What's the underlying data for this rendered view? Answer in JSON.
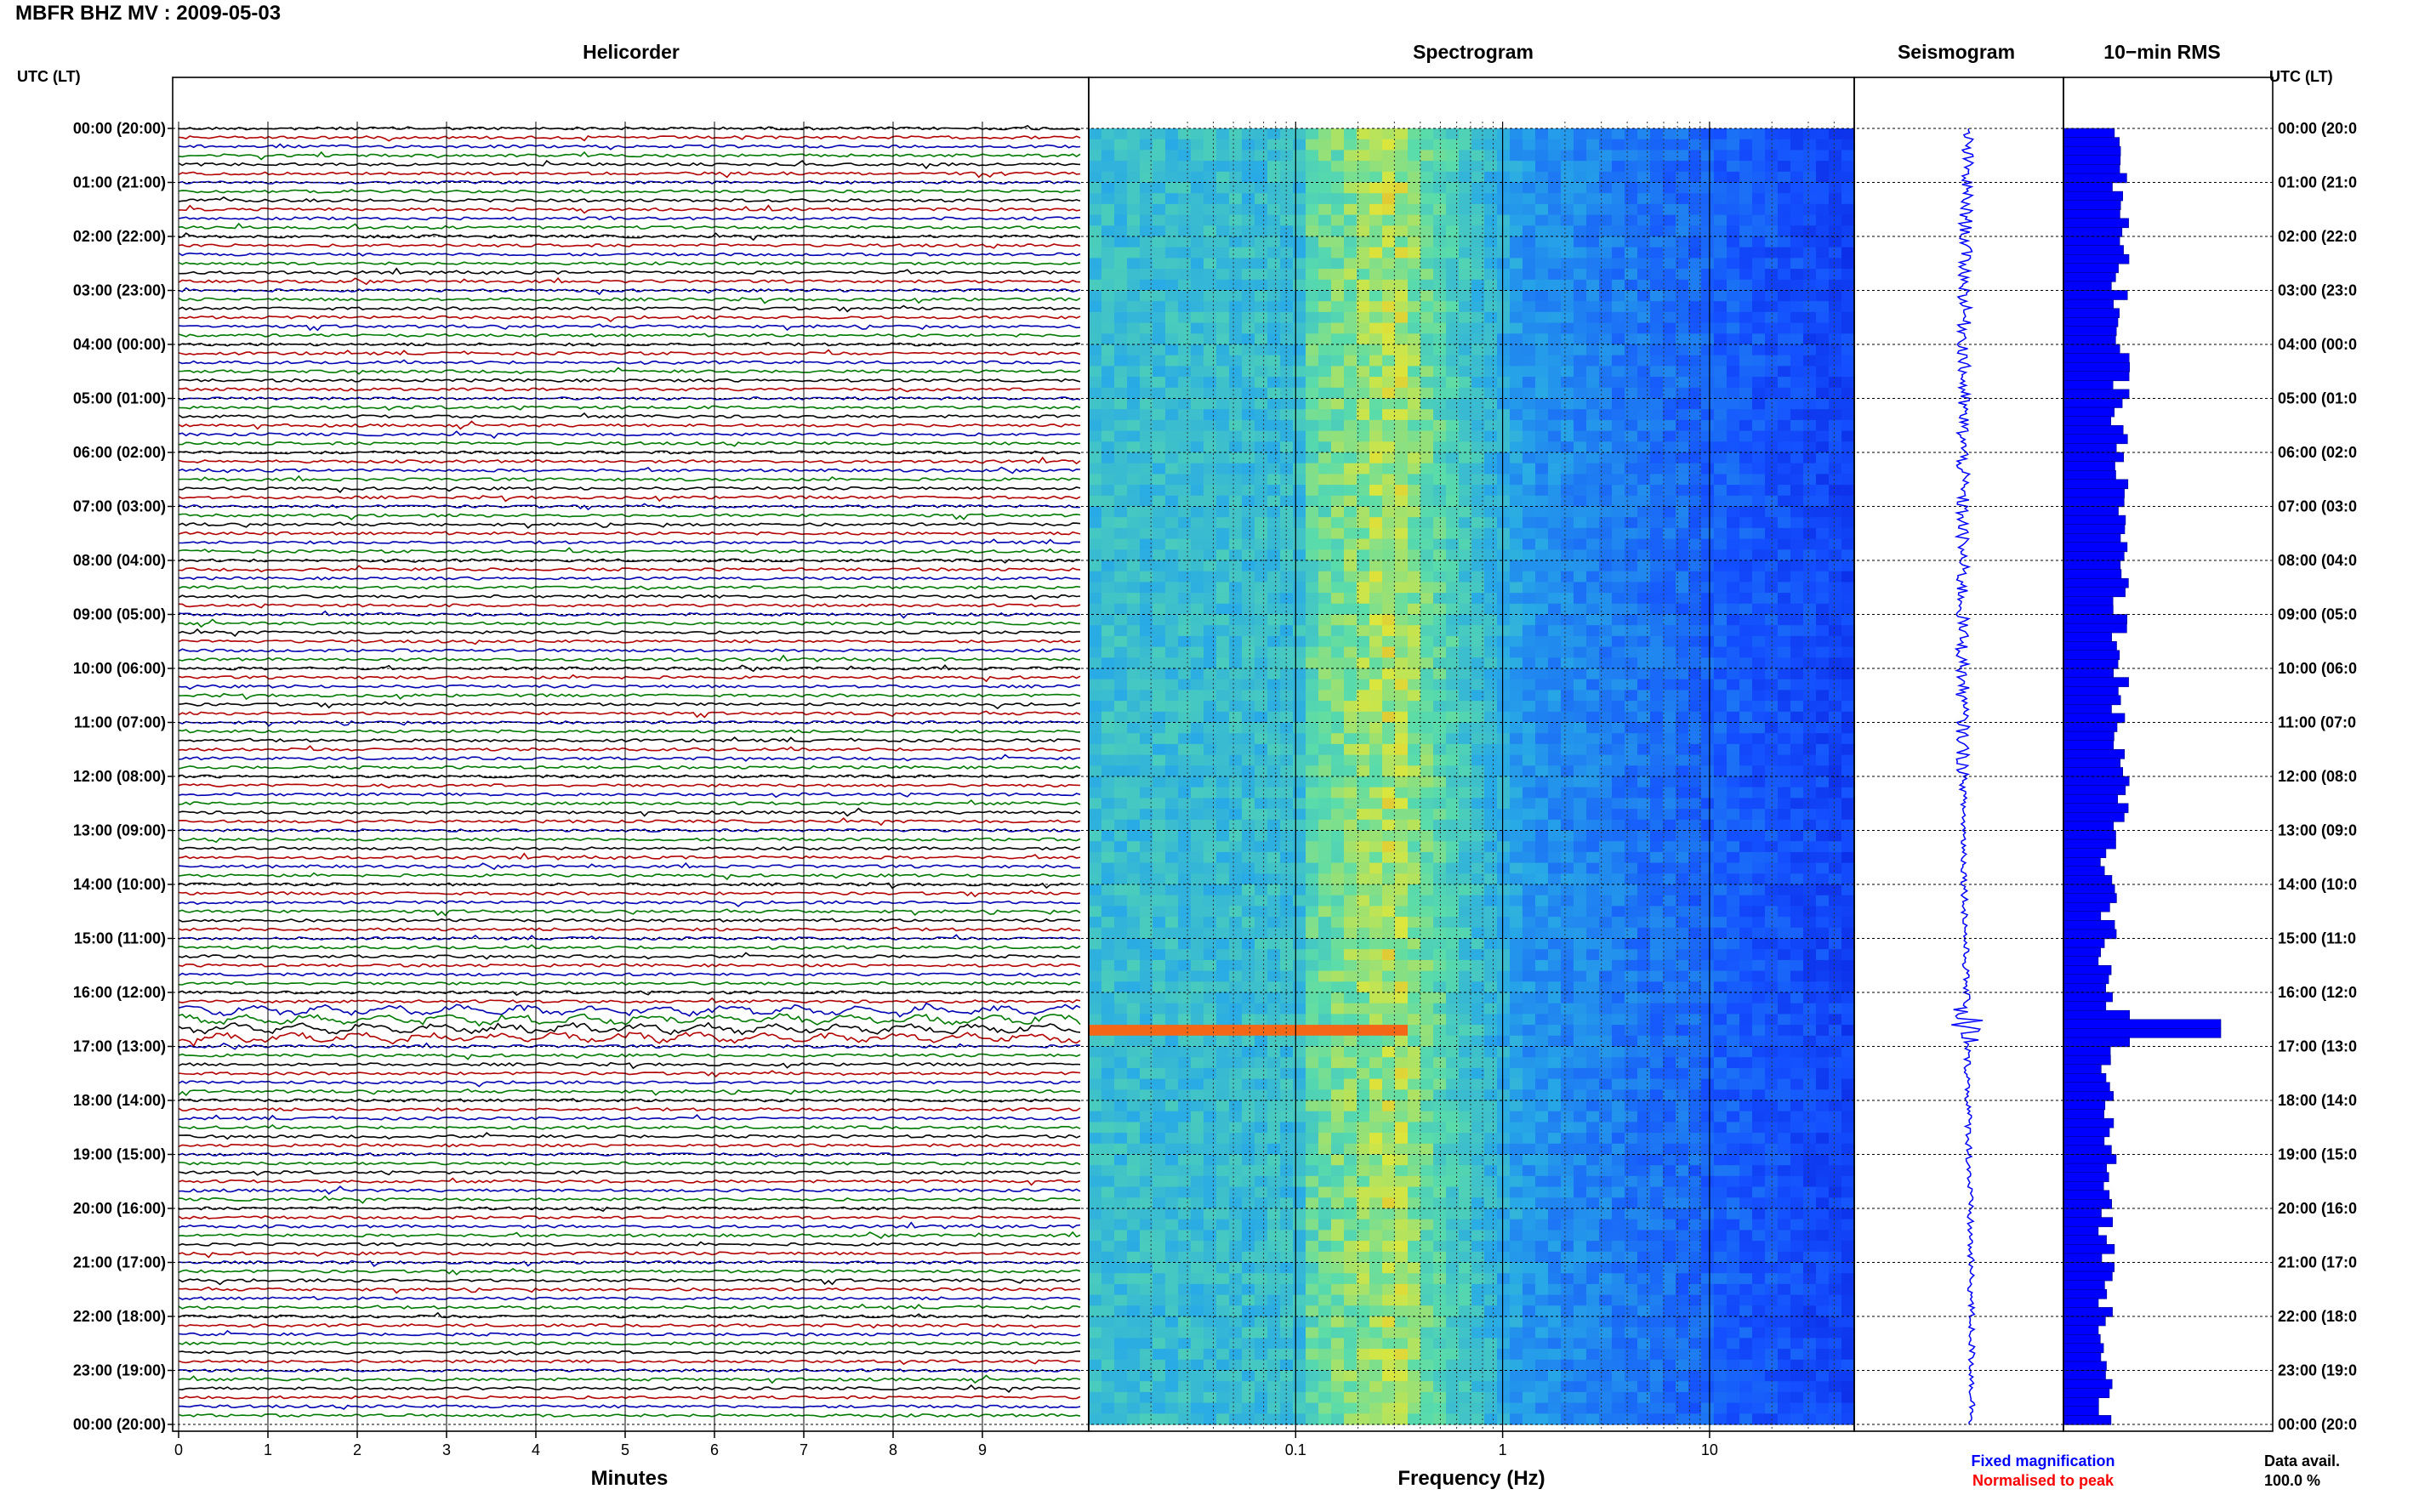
{
  "title": "MBFR BHZ MV : 2009-05-03",
  "panels": {
    "helicorder": "Helicorder",
    "spectrogram": "Spectrogram",
    "seismogram": "Seismogram",
    "rms": "10−min RMS"
  },
  "axis_labels": {
    "minutes": "Minutes",
    "frequency": "Frequency (Hz)",
    "left_corner": "UTC (LT)",
    "right_corner": "UTC (LT)"
  },
  "legend": {
    "fixed": "Fixed magnification",
    "normalised": "Normalised to peak",
    "fixed_color": "#0000ff",
    "normalised_color": "#ff0000"
  },
  "data_avail": {
    "label": "Data avail.",
    "value": "100.0 %"
  },
  "chart_data": [
    {
      "type": "line",
      "panel": "Helicorder",
      "xlabel": "Minutes",
      "x_ticks": [
        0,
        1,
        2,
        3,
        4,
        5,
        6,
        7,
        8,
        9
      ],
      "xlim": [
        0,
        10
      ],
      "rows_per_hour": 6,
      "trace_colors": [
        "#000000",
        "#b30000",
        "#0000b3",
        "#007a00"
      ],
      "hour_labels": [
        "00:00 (20:00)",
        "01:00 (21:00)",
        "02:00 (22:00)",
        "03:00 (23:00)",
        "04:00 (00:00)",
        "05:00 (01:00)",
        "06:00 (02:00)",
        "07:00 (03:00)",
        "08:00 (04:00)",
        "09:00 (05:00)",
        "10:00 (06:00)",
        "11:00 (07:00)",
        "12:00 (08:00)",
        "13:00 (09:00)",
        "14:00 (10:00)",
        "15:00 (11:00)",
        "16:00 (12:00)",
        "17:00 (13:00)",
        "18:00 (14:00)",
        "19:00 (15:00)",
        "20:00 (16:00)",
        "21:00 (17:00)",
        "22:00 (18:00)",
        "23:00 (19:00)",
        "00:00 (20:00)"
      ],
      "right_hour_labels": [
        "00:00 (20:0",
        "01:00 (21:0",
        "02:00 (22:0",
        "03:00 (23:0",
        "04:00 (00:0",
        "05:00 (01:0",
        "06:00 (02:0",
        "07:00 (03:0",
        "08:00 (04:0",
        "09:00 (05:0",
        "10:00 (06:0",
        "11:00 (07:0",
        "12:00 (08:0",
        "13:00 (09:0",
        "14:00 (10:0",
        "15:00 (11:0",
        "16:00 (12:0",
        "17:00 (13:0",
        "18:00 (14:0",
        "19:00 (15:0",
        "20:00 (16:0",
        "21:00 (17:0",
        "22:00 (18:0",
        "23:00 (19:0",
        "00:00 (20:0"
      ]
    },
    {
      "type": "heatmap",
      "panel": "Spectrogram",
      "xlabel": "Frequency (Hz)",
      "x_scale": "log",
      "xlim": [
        0.01,
        50
      ],
      "x_ticks": [
        0.1,
        1,
        10
      ],
      "x_tick_labels": [
        "0.1",
        "1",
        "10"
      ],
      "event_hour": 16.6
    },
    {
      "type": "line",
      "panel": "Seismogram",
      "event_hour": 16.6
    },
    {
      "type": "bar",
      "panel": "10−min RMS",
      "orientation": "horizontal",
      "bin_minutes": 10,
      "peak_hour": 16.6
    }
  ]
}
